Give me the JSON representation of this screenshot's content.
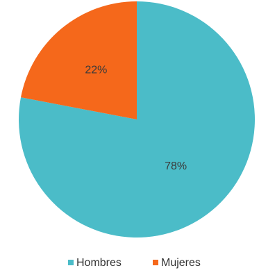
{
  "chart_data": {
    "type": "pie",
    "title": "",
    "categories": [
      "Hombres",
      "Mujeres"
    ],
    "values": [
      78,
      22
    ],
    "data_labels": [
      "78%",
      "22%"
    ],
    "colors": [
      "#4bbcc8",
      "#f5681b"
    ],
    "start_angle_deg": 0,
    "direction": "clockwise",
    "legend_position": "bottom"
  }
}
